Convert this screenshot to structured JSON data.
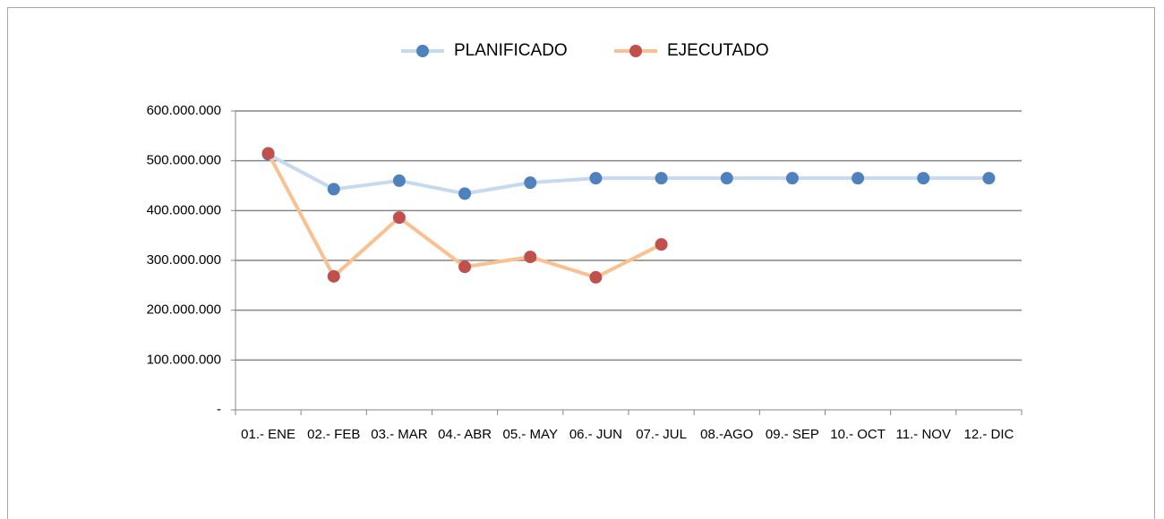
{
  "chart_data": {
    "type": "line",
    "categories": [
      "01.- ENE",
      "02.- FEB",
      "03.- MAR",
      "04.- ABR",
      "05.- MAY",
      "06.- JUN",
      "07.- JUL",
      "08.-AGO",
      "09.- SEP",
      "10.- OCT",
      "11.- NOV",
      "12.- DIC"
    ],
    "series": [
      {
        "name": "PLANIFICADO",
        "color": "#c6d9f1",
        "marker_color": "#4f81bd",
        "values": [
          513000000,
          443000000,
          460000000,
          434000000,
          456000000,
          465000000,
          465000000,
          465000000,
          465000000,
          465000000,
          465000000,
          465000000
        ]
      },
      {
        "name": "EJECUTADO",
        "color": "#fac090",
        "marker_color": "#c0504d",
        "values": [
          515000000,
          268000000,
          386000000,
          287000000,
          307000000,
          266000000,
          332000000,
          null,
          null,
          null,
          null,
          null
        ]
      }
    ],
    "ylim": [
      0,
      600000000
    ],
    "yticks": [
      {
        "value": 0,
        "label": "-"
      },
      {
        "value": 100000000,
        "label": "100.000.000"
      },
      {
        "value": 200000000,
        "label": "200.000.000"
      },
      {
        "value": 300000000,
        "label": "300.000.000"
      },
      {
        "value": 400000000,
        "label": "400.000.000"
      },
      {
        "value": 500000000,
        "label": "500.000.000"
      },
      {
        "value": 600000000,
        "label": "600.000.000"
      }
    ],
    "grid": true,
    "legend": "top"
  }
}
